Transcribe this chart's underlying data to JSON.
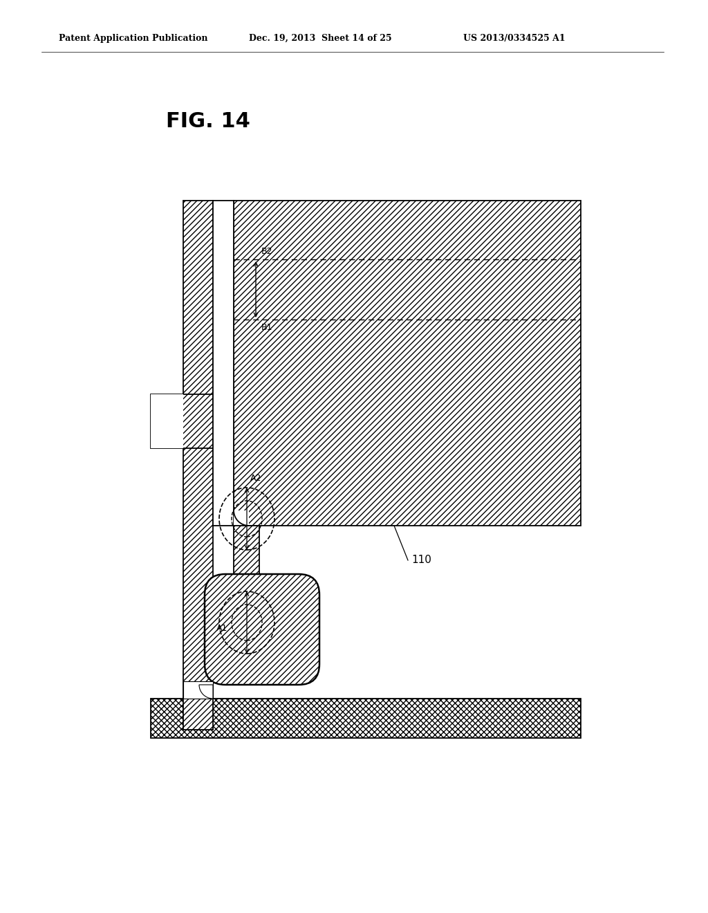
{
  "title": "FIG. 14",
  "header_left": "Patent Application Publication",
  "header_mid": "Dec. 19, 2013  Sheet 14 of 25",
  "header_right": "US 2013/0334525 A1",
  "label_110": "110",
  "label_A1": "A1",
  "label_A2": "A2",
  "label_B1": "B1",
  "label_B2": "B2",
  "bg_color": "#ffffff"
}
